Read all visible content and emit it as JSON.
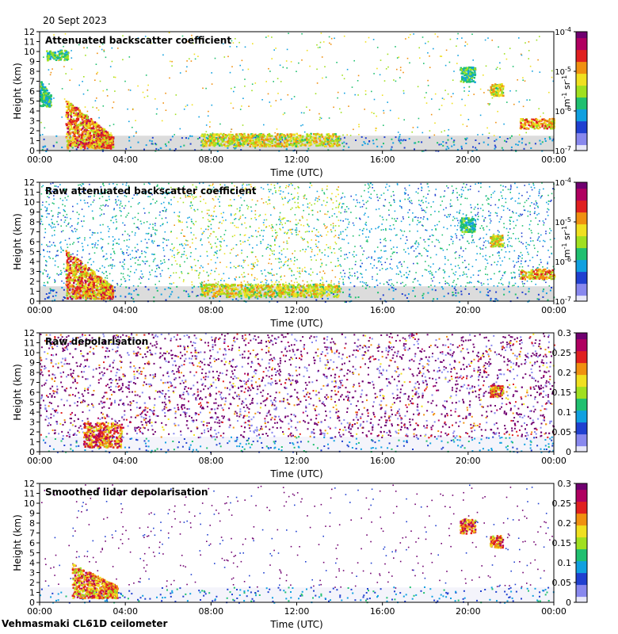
{
  "header": {
    "date": "20 Sept 2023"
  },
  "footer": {
    "instrument": "Vehmasmaki CL61D ceilometer"
  },
  "chart_data": [
    {
      "type": "heatmap",
      "title": "Attenuated backscatter coefficient",
      "xlabel": "Time (UTC)",
      "ylabel": "Height (km)",
      "x_ticks": [
        "00:00",
        "04:00",
        "08:00",
        "12:00",
        "16:00",
        "20:00",
        "00:00"
      ],
      "xlim_hours": [
        0,
        24
      ],
      "ylim": [
        0,
        12
      ],
      "y_ticks": [
        "0",
        "1",
        "2",
        "3",
        "4",
        "5",
        "6",
        "7",
        "8",
        "9",
        "10",
        "11",
        "12"
      ],
      "colorbar": {
        "scale": "log",
        "range": [
          1e-07,
          0.0001
        ],
        "tick_bases": [
          "10",
          "10",
          "10",
          "10"
        ],
        "tick_exps": [
          "-7",
          "-6",
          "-5",
          "-4"
        ],
        "unit_main": "m",
        "unit_exp1": "-1",
        "unit_sr": "sr",
        "unit_exp2": "-1"
      },
      "features": [
        {
          "type": "cloud_layer",
          "time_start": 1.2,
          "time_end": 3.4,
          "height_top": 5.3,
          "height_bottom": 0.3,
          "intensity": 0.9
        },
        {
          "type": "cloud_layer",
          "time_start": 0.0,
          "time_end": 0.5,
          "height_top": 7.2,
          "height_bottom": 4.5,
          "intensity": 0.5
        },
        {
          "type": "cloud_layer",
          "time_start": 0.3,
          "time_end": 1.3,
          "height_top": 10.2,
          "height_bottom": 9.2,
          "intensity": 0.55
        },
        {
          "type": "cloud_layer",
          "time_start": 7.5,
          "time_end": 14.0,
          "height_top": 1.8,
          "height_bottom": 0.5,
          "intensity": 0.75
        },
        {
          "type": "cloud_layer",
          "time_start": 19.6,
          "time_end": 20.3,
          "height_top": 8.5,
          "height_bottom": 7.0,
          "intensity": 0.5
        },
        {
          "type": "cloud_layer",
          "time_start": 21.0,
          "time_end": 21.6,
          "height_top": 6.8,
          "height_bottom": 5.6,
          "intensity": 0.75
        },
        {
          "type": "cloud_layer",
          "time_start": 22.4,
          "time_end": 24.0,
          "height_top": 3.3,
          "height_bottom": 2.3,
          "intensity": 0.85
        }
      ]
    },
    {
      "type": "heatmap",
      "title": "Raw attenuated backscatter coefficient",
      "xlabel": "Time (UTC)",
      "ylabel": "Height (km)",
      "x_ticks": [
        "00:00",
        "04:00",
        "08:00",
        "12:00",
        "16:00",
        "20:00",
        "00:00"
      ],
      "xlim_hours": [
        0,
        24
      ],
      "ylim": [
        0,
        12
      ],
      "y_ticks": [
        "0",
        "1",
        "2",
        "3",
        "4",
        "5",
        "6",
        "7",
        "8",
        "9",
        "10",
        "11",
        "12"
      ],
      "colorbar": {
        "scale": "log",
        "range": [
          1e-07,
          0.0001
        ],
        "tick_bases": [
          "10",
          "10",
          "10",
          "10"
        ],
        "tick_exps": [
          "-7",
          "-6",
          "-5",
          "-4"
        ],
        "unit_main": "m",
        "unit_exp1": "-1",
        "unit_sr": "sr",
        "unit_exp2": "-1"
      },
      "features": [
        {
          "type": "cloud_layer",
          "time_start": 1.2,
          "time_end": 3.4,
          "height_top": 5.3,
          "height_bottom": 0.3,
          "intensity": 0.9
        },
        {
          "type": "cloud_layer",
          "time_start": 7.5,
          "time_end": 14.0,
          "height_top": 1.8,
          "height_bottom": 0.5,
          "intensity": 0.75
        },
        {
          "type": "cloud_layer",
          "time_start": 19.6,
          "time_end": 20.3,
          "height_top": 8.5,
          "height_bottom": 7.0,
          "intensity": 0.5
        },
        {
          "type": "cloud_layer",
          "time_start": 21.0,
          "time_end": 21.6,
          "height_top": 6.8,
          "height_bottom": 5.6,
          "intensity": 0.75
        },
        {
          "type": "cloud_layer",
          "time_start": 22.4,
          "time_end": 24.0,
          "height_top": 3.3,
          "height_bottom": 2.3,
          "intensity": 0.85
        }
      ]
    },
    {
      "type": "heatmap",
      "title": "Raw depolarisation",
      "xlabel": "Time (UTC)",
      "ylabel": "Height (km)",
      "x_ticks": [
        "00:00",
        "04:00",
        "08:00",
        "12:00",
        "16:00",
        "20:00",
        "00:00"
      ],
      "xlim_hours": [
        0,
        24
      ],
      "ylim": [
        0,
        12
      ],
      "y_ticks": [
        "0",
        "1",
        "2",
        "3",
        "4",
        "5",
        "6",
        "7",
        "8",
        "9",
        "10",
        "11",
        "12"
      ],
      "colorbar": {
        "scale": "linear",
        "range": [
          0,
          0.3
        ],
        "ticks": [
          "0",
          "0.05",
          "0.1",
          "0.15",
          "0.2",
          "0.25",
          "0.3"
        ]
      },
      "features": [
        {
          "type": "cloud_layer",
          "time_start": 2.0,
          "time_end": 3.8,
          "height_top": 3.0,
          "height_bottom": 0.5,
          "intensity": 0.95
        },
        {
          "type": "cloud_layer",
          "time_start": 21.0,
          "time_end": 21.6,
          "height_top": 6.8,
          "height_bottom": 5.6,
          "intensity": 0.95
        }
      ]
    },
    {
      "type": "heatmap",
      "title": "Smoothed lidar depolarisation",
      "xlabel": "Time (UTC)",
      "ylabel": "Height (km)",
      "x_ticks": [
        "00:00",
        "04:00",
        "08:00",
        "12:00",
        "16:00",
        "20:00",
        "00:00"
      ],
      "xlim_hours": [
        0,
        24
      ],
      "ylim": [
        0,
        12
      ],
      "y_ticks": [
        "0",
        "1",
        "2",
        "3",
        "4",
        "5",
        "6",
        "7",
        "8",
        "9",
        "10",
        "11",
        "12"
      ],
      "colorbar": {
        "scale": "linear",
        "range": [
          0,
          0.3
        ],
        "ticks": [
          "0",
          "0.05",
          "0.1",
          "0.15",
          "0.2",
          "0.25",
          "0.3"
        ]
      },
      "features": [
        {
          "type": "cloud_layer",
          "time_start": 1.5,
          "time_end": 3.6,
          "height_top": 4.0,
          "height_bottom": 0.5,
          "intensity": 0.9
        },
        {
          "type": "cloud_layer",
          "time_start": 19.6,
          "time_end": 20.3,
          "height_top": 8.5,
          "height_bottom": 7.0,
          "intensity": 0.95
        },
        {
          "type": "cloud_layer",
          "time_start": 21.0,
          "time_end": 21.6,
          "height_top": 6.8,
          "height_bottom": 5.6,
          "intensity": 0.95
        }
      ]
    }
  ]
}
